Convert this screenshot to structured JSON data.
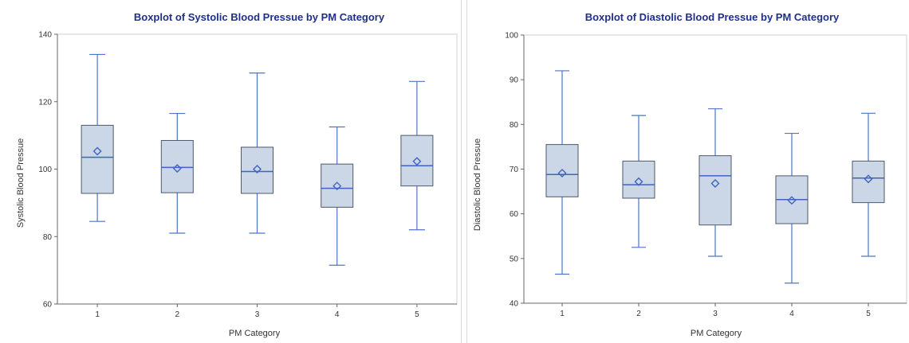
{
  "colors": {
    "title": "#1f2f8a",
    "box_fill": "#cbd6e6",
    "box_stroke": "#4d5a6b",
    "whisker": "#4f74c4",
    "median": "#3f63c2",
    "mean_marker": "#3f63c2",
    "axis": "#666666"
  },
  "chart_data": [
    {
      "type": "boxplot",
      "title": "Boxplot of Systolic Blood Pressue by PM Category",
      "xlabel": "PM Category",
      "ylabel": "Systolic Blood Pressue",
      "ylim": [
        60,
        140
      ],
      "yticks": [
        60,
        80,
        100,
        120,
        140
      ],
      "grid": false,
      "categories": [
        "1",
        "2",
        "3",
        "4",
        "5"
      ],
      "boxes": [
        {
          "category": "1",
          "min": 84.5,
          "q1": 92.8,
          "median": 103.5,
          "q3": 113.0,
          "max": 134.0,
          "mean": 105.3
        },
        {
          "category": "2",
          "min": 81.0,
          "q1": 93.0,
          "median": 100.5,
          "q3": 108.5,
          "max": 116.5,
          "mean": 100.2
        },
        {
          "category": "3",
          "min": 81.0,
          "q1": 92.8,
          "median": 99.3,
          "q3": 106.5,
          "max": 128.5,
          "mean": 100.0
        },
        {
          "category": "4",
          "min": 71.5,
          "q1": 88.7,
          "median": 94.3,
          "q3": 101.5,
          "max": 112.5,
          "mean": 95.0
        },
        {
          "category": "5",
          "min": 82.0,
          "q1": 95.0,
          "median": 101.0,
          "q3": 110.0,
          "max": 126.0,
          "mean": 102.3
        }
      ]
    },
    {
      "type": "boxplot",
      "title": "Boxplot of Diastolic Blood Pressue by PM Category",
      "xlabel": "PM Category",
      "ylabel": "Diastolic Blood Pressue",
      "ylim": [
        40,
        100
      ],
      "yticks": [
        40,
        50,
        60,
        70,
        80,
        90,
        100
      ],
      "grid": false,
      "categories": [
        "1",
        "2",
        "3",
        "4",
        "5"
      ],
      "boxes": [
        {
          "category": "1",
          "min": 46.5,
          "q1": 63.8,
          "median": 68.8,
          "q3": 75.5,
          "max": 92.0,
          "mean": 69.1
        },
        {
          "category": "2",
          "min": 52.5,
          "q1": 63.5,
          "median": 66.5,
          "q3": 71.8,
          "max": 82.0,
          "mean": 67.2
        },
        {
          "category": "3",
          "min": 50.5,
          "q1": 57.5,
          "median": 68.5,
          "q3": 73.0,
          "max": 83.5,
          "mean": 66.8
        },
        {
          "category": "4",
          "min": 44.5,
          "q1": 57.8,
          "median": 63.2,
          "q3": 68.5,
          "max": 78.0,
          "mean": 63.0
        },
        {
          "category": "5",
          "min": 50.5,
          "q1": 62.5,
          "median": 68.0,
          "q3": 71.8,
          "max": 82.5,
          "mean": 67.8
        }
      ]
    }
  ]
}
